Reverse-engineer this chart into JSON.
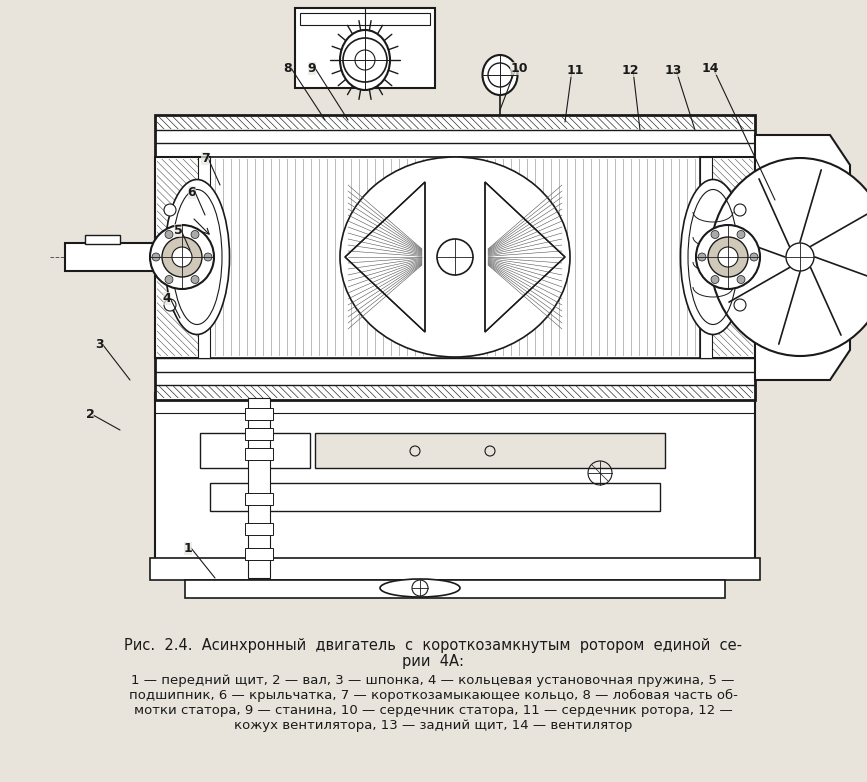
{
  "bg_color": "#e8e4dc",
  "line_color": "#1a1a1a",
  "title_line1": "Рис.  2.4.  Асинхронный  двигатель  с  короткозамкнутым  ротором  единой  се-",
  "title_line2": "рии  4А:",
  "cap1": "1 — передний щит, 2 — вал, 3 — шпонка, 4 — кольцевая установочная пружина, 5 —",
  "cap2": "подшипник, 6 — крыльчатка, 7 — короткозамыкающее кольцо, 8 — лобовая часть об-",
  "cap3": "мотки статора, 9 — станина, 10 — сердечник статора, 11 — сердечник ротора, 12 —",
  "cap4": "кожух вентилятора, 13 — задний щит, 14 — вентилятор",
  "figsize": [
    8.67,
    7.82
  ],
  "dpi": 100
}
